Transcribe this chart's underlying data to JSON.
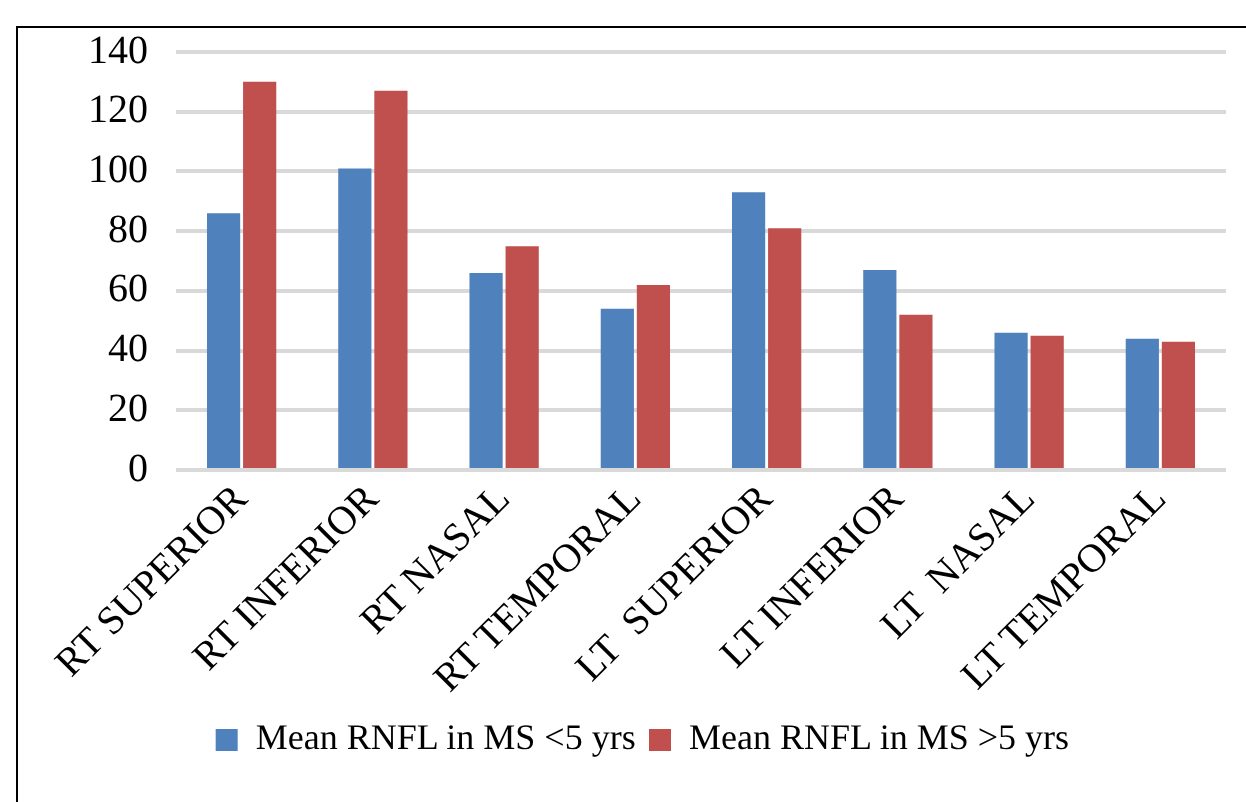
{
  "chart_data": {
    "type": "bar",
    "categories": [
      "RT SUPERIOR",
      "RT INFERIOR",
      "RT NASAL",
      "RT TEMPORAL",
      "LT  SUPERIOR",
      "LT INFERIOR",
      "LT  NASAL",
      "LT TEMPORAL"
    ],
    "series": [
      {
        "name": "Mean RNFL in MS <5 yrs",
        "color": "#4f81bd",
        "values": [
          86,
          101,
          66,
          54,
          93,
          67,
          46,
          44
        ]
      },
      {
        "name": "Mean RNFL in MS >5 yrs",
        "color": "#c0504d",
        "values": [
          130,
          127,
          75,
          62,
          81,
          52,
          45,
          43
        ]
      }
    ],
    "ylim": [
      0,
      140
    ],
    "yticks": [
      0,
      20,
      40,
      60,
      80,
      100,
      120,
      140
    ],
    "grid": "y",
    "legend": "bottom"
  }
}
